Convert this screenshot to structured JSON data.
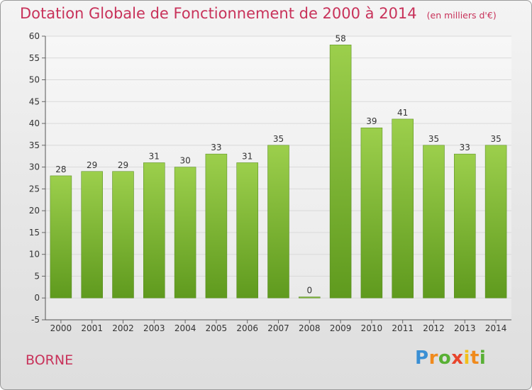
{
  "title": "Dotation Globale de Fonctionnement de 2000 à 2014",
  "subtitle": "(en milliers d'€)",
  "commune": "BORNE",
  "logo": "Proxiti",
  "colors": {
    "accent": "#c8325a",
    "bar_top": "#9ccf4c",
    "bar_bottom": "#5f9a1e",
    "grid": "#d9d9d9"
  },
  "chart_data": {
    "type": "bar",
    "categories": [
      "2000",
      "2001",
      "2002",
      "2003",
      "2004",
      "2005",
      "2006",
      "2007",
      "2008",
      "2009",
      "2010",
      "2011",
      "2012",
      "2013",
      "2014"
    ],
    "values": [
      28,
      29,
      29,
      31,
      30,
      33,
      31,
      35,
      0,
      58,
      39,
      41,
      35,
      33,
      35
    ],
    "title": "Dotation Globale de Fonctionnement de 2000 à 2014",
    "subtitle": "(en milliers d'€)",
    "xlabel": "",
    "ylabel": "",
    "ylim": [
      -5,
      60
    ],
    "yticks": [
      -5,
      0,
      5,
      10,
      15,
      20,
      25,
      30,
      35,
      40,
      45,
      50,
      55,
      60
    ],
    "grid": true,
    "legend": "none"
  }
}
